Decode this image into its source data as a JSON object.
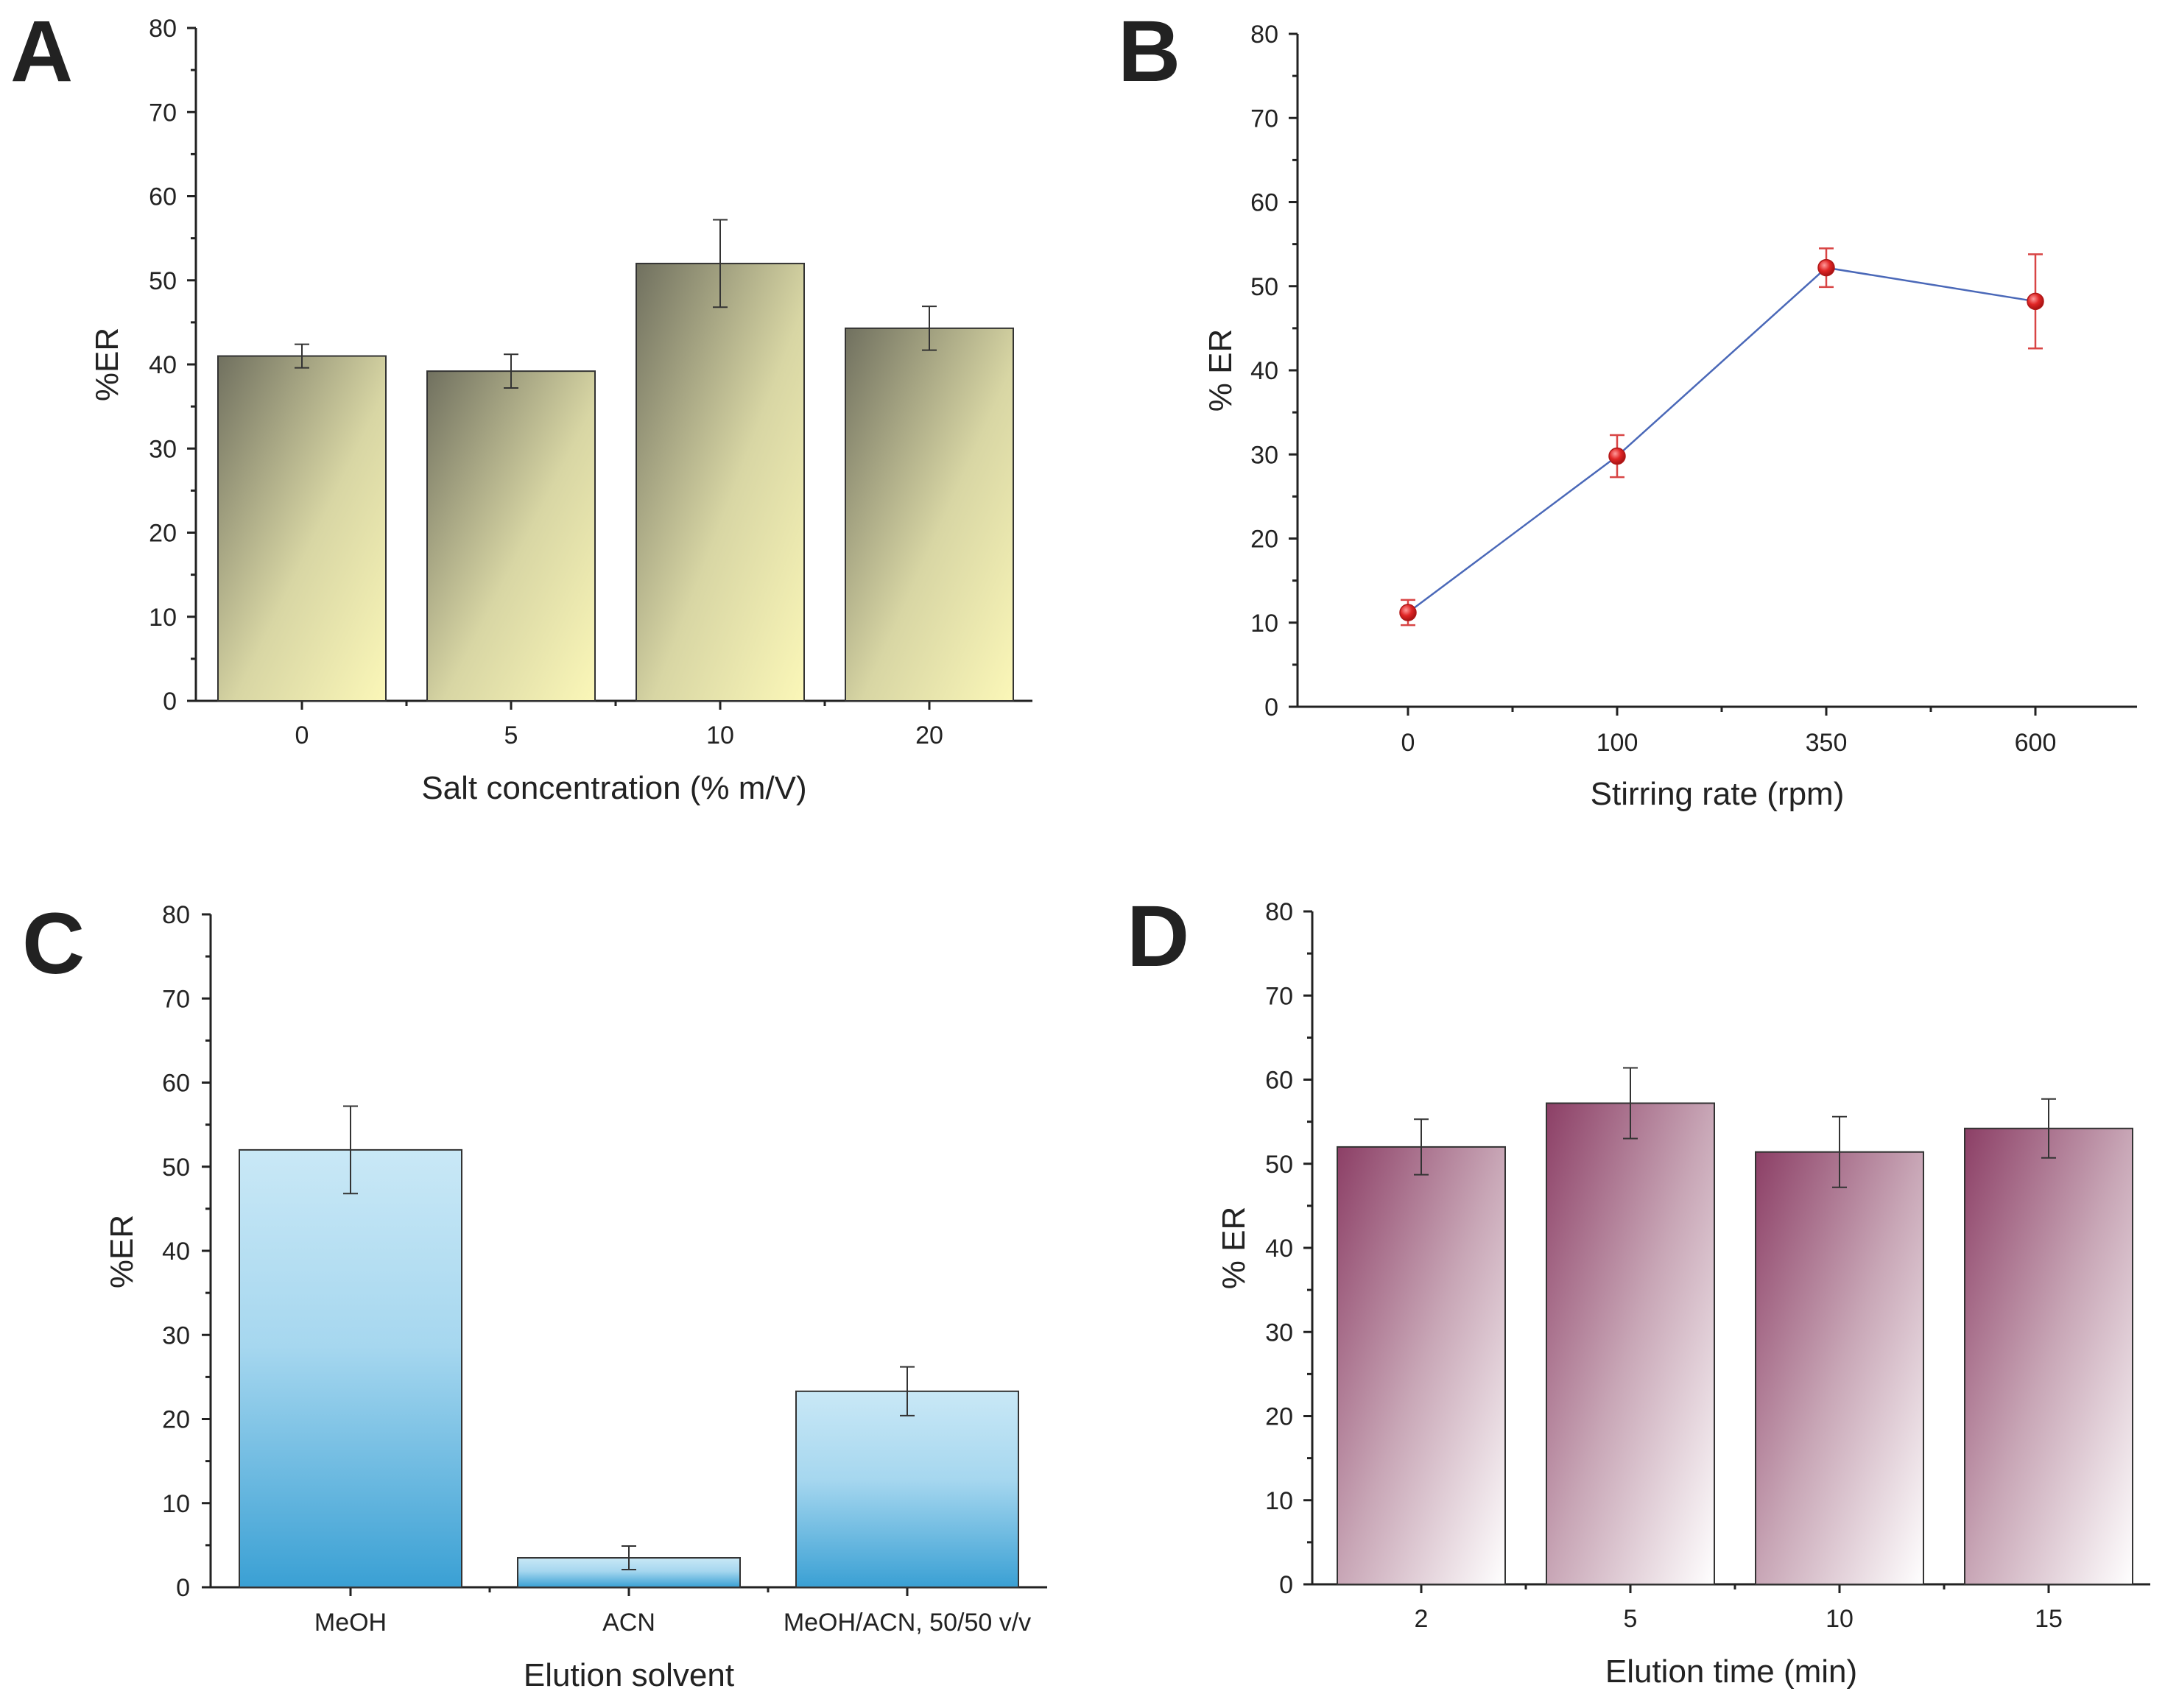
{
  "colors": {
    "panel_a_dark": "#70705f",
    "panel_a_light": "#fbf7b8",
    "panel_b_line": "#4a68b8",
    "panel_b_marker": "#e02525",
    "panel_c_top": "#c9e8f6",
    "panel_c_bottom": "#3aa0d4",
    "panel_d_top": "#8c3f66",
    "panel_d_bottom": "#ffffff"
  },
  "chart_data": [
    {
      "panel": "A",
      "type": "bar",
      "title": "",
      "categories": [
        "0",
        "5",
        "10",
        "20"
      ],
      "values": [
        41,
        39.2,
        52,
        44.3
      ],
      "errors": [
        1.4,
        2.0,
        5.2,
        2.6
      ],
      "xlabel": "Salt concentration (% m/V)",
      "ylabel": "%ER",
      "ylim": [
        0,
        80
      ],
      "yticks": [
        "0",
        "10",
        "20",
        "30",
        "40",
        "50",
        "60",
        "70",
        "80"
      ],
      "grid": false
    },
    {
      "panel": "B",
      "type": "line",
      "title": "",
      "categories": [
        "0",
        "100",
        "350",
        "600"
      ],
      "values": [
        11.2,
        29.8,
        52.2,
        48.2
      ],
      "errors": [
        1.5,
        2.5,
        2.3,
        5.6
      ],
      "xlabel": "Stirring rate (rpm)",
      "ylabel": "% ER",
      "ylim": [
        0,
        80
      ],
      "yticks": [
        "0",
        "10",
        "20",
        "30",
        "40",
        "50",
        "60",
        "70",
        "80"
      ],
      "grid": false
    },
    {
      "panel": "C",
      "type": "bar",
      "title": "",
      "categories": [
        "MeOH",
        "ACN",
        "MeOH/ACN, 50/50 v/v"
      ],
      "values": [
        52,
        3.5,
        23.3
      ],
      "errors": [
        5.2,
        1.4,
        2.9
      ],
      "xlabel": "Elution solvent",
      "ylabel": "%ER",
      "ylim": [
        0,
        80
      ],
      "yticks": [
        "0",
        "10",
        "20",
        "30",
        "40",
        "50",
        "60",
        "70",
        "80"
      ],
      "grid": false
    },
    {
      "panel": "D",
      "type": "bar",
      "title": "",
      "categories": [
        "2",
        "5",
        "10",
        "15"
      ],
      "values": [
        52,
        57.2,
        51.4,
        54.2
      ],
      "errors": [
        3.3,
        4.2,
        4.2,
        3.5
      ],
      "xlabel": "Elution time (min)",
      "ylabel": "% ER",
      "ylim": [
        0,
        80
      ],
      "yticks": [
        "0",
        "10",
        "20",
        "30",
        "40",
        "50",
        "60",
        "70",
        "80"
      ],
      "grid": false
    }
  ]
}
